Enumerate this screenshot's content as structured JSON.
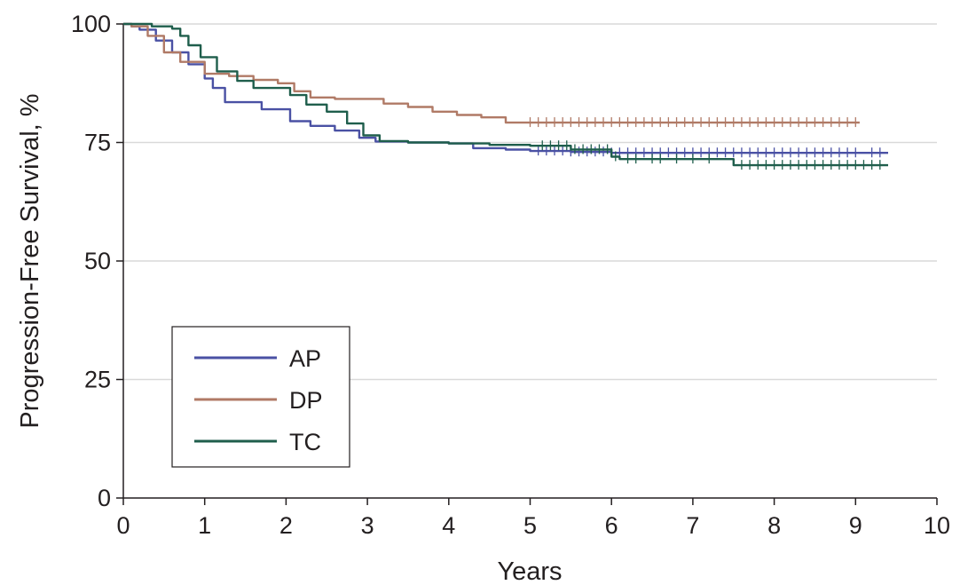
{
  "chart_data": {
    "type": "line",
    "xlabel": "Years",
    "ylabel": "Progression-Free Survival, %",
    "xlim": [
      0,
      10
    ],
    "ylim": [
      0,
      100
    ],
    "x_ticks": [
      "0",
      "1",
      "2",
      "3",
      "4",
      "5",
      "6",
      "7",
      "8",
      "9",
      "10"
    ],
    "y_ticks": [
      "0",
      "25",
      "50",
      "75",
      "100"
    ],
    "grid": "horizontal",
    "legend_position": "bottom-left",
    "series": [
      {
        "name": "AP",
        "color": "#4a51a4",
        "points": [
          [
            0,
            100
          ],
          [
            0.1,
            99.5
          ],
          [
            0.2,
            98.8
          ],
          [
            0.4,
            96.5
          ],
          [
            0.6,
            94
          ],
          [
            0.8,
            91.5
          ],
          [
            1.0,
            88.5
          ],
          [
            1.1,
            86.5
          ],
          [
            1.25,
            83.5
          ],
          [
            1.6,
            83.5
          ],
          [
            1.7,
            82
          ],
          [
            1.95,
            82
          ],
          [
            2.05,
            79.5
          ],
          [
            2.3,
            78.5
          ],
          [
            2.6,
            77.5
          ],
          [
            2.9,
            76
          ],
          [
            3.1,
            75.2
          ],
          [
            3.5,
            75
          ],
          [
            4.0,
            74.8
          ],
          [
            4.3,
            73.8
          ],
          [
            4.7,
            73.5
          ],
          [
            5.0,
            73.2
          ],
          [
            5.5,
            73.0
          ],
          [
            6.0,
            72.8
          ],
          [
            7.0,
            72.8
          ],
          [
            8.0,
            72.8
          ],
          [
            9.4,
            72.8
          ]
        ],
        "censor_x": [
          5.1,
          5.2,
          5.3,
          5.4,
          5.5,
          5.6,
          5.7,
          5.8,
          5.9,
          6.0,
          6.1,
          6.2,
          6.3,
          6.4,
          6.5,
          6.6,
          6.7,
          6.8,
          6.9,
          7.0,
          7.1,
          7.2,
          7.3,
          7.4,
          7.5,
          7.6,
          7.7,
          7.8,
          7.9,
          8.0,
          8.1,
          8.2,
          8.3,
          8.4,
          8.5,
          8.6,
          8.7,
          8.8,
          8.9,
          9.0,
          9.2,
          9.3
        ]
      },
      {
        "name": "DP",
        "color": "#b07a66",
        "points": [
          [
            0,
            100
          ],
          [
            0.1,
            99.5
          ],
          [
            0.3,
            97.5
          ],
          [
            0.5,
            94
          ],
          [
            0.7,
            92
          ],
          [
            1.0,
            89.5
          ],
          [
            1.3,
            89
          ],
          [
            1.6,
            88.2
          ],
          [
            1.9,
            87.5
          ],
          [
            2.1,
            85.8
          ],
          [
            2.3,
            84.5
          ],
          [
            2.6,
            84.2
          ],
          [
            3.0,
            84.2
          ],
          [
            3.2,
            83.2
          ],
          [
            3.5,
            82.5
          ],
          [
            3.8,
            81.5
          ],
          [
            4.1,
            80.8
          ],
          [
            4.4,
            80.3
          ],
          [
            4.7,
            79.2
          ],
          [
            5.0,
            79.2
          ],
          [
            6.0,
            79.2
          ],
          [
            7.0,
            79.2
          ],
          [
            8.0,
            79.2
          ],
          [
            9.05,
            79.2
          ]
        ],
        "censor_x": [
          5.0,
          5.1,
          5.2,
          5.3,
          5.4,
          5.5,
          5.6,
          5.7,
          5.8,
          5.9,
          6.0,
          6.1,
          6.2,
          6.3,
          6.4,
          6.5,
          6.6,
          6.7,
          6.8,
          6.9,
          7.0,
          7.1,
          7.2,
          7.3,
          7.4,
          7.5,
          7.6,
          7.7,
          7.8,
          7.9,
          8.0,
          8.1,
          8.2,
          8.3,
          8.4,
          8.5,
          8.6,
          8.7,
          8.8,
          8.9,
          9.0
        ]
      },
      {
        "name": "TC",
        "color": "#1f5e4c",
        "points": [
          [
            0,
            100
          ],
          [
            0.25,
            100
          ],
          [
            0.35,
            99.5
          ],
          [
            0.6,
            99
          ],
          [
            0.7,
            97.5
          ],
          [
            0.8,
            95.5
          ],
          [
            0.95,
            93
          ],
          [
            1.15,
            90
          ],
          [
            1.4,
            88
          ],
          [
            1.6,
            86.5
          ],
          [
            1.9,
            86.5
          ],
          [
            2.05,
            85
          ],
          [
            2.25,
            83
          ],
          [
            2.5,
            81.5
          ],
          [
            2.75,
            79
          ],
          [
            2.95,
            76.5
          ],
          [
            3.15,
            75.3
          ],
          [
            3.5,
            75.0
          ],
          [
            4.0,
            74.8
          ],
          [
            4.5,
            74.5
          ],
          [
            5.0,
            74.3
          ],
          [
            5.5,
            73.5
          ],
          [
            6.0,
            72.0
          ],
          [
            6.1,
            71.5
          ],
          [
            7.0,
            71.5
          ],
          [
            7.45,
            71.5
          ],
          [
            7.5,
            70.2
          ],
          [
            8.0,
            70.2
          ],
          [
            9.4,
            70.2
          ]
        ],
        "censor_x": [
          5.15,
          5.25,
          5.35,
          5.45,
          5.55,
          5.65,
          5.75,
          5.85,
          5.95,
          6.05,
          6.2,
          6.3,
          6.5,
          6.6,
          6.8,
          7.0,
          7.2,
          7.6,
          7.7,
          7.8,
          7.9,
          8.0,
          8.1,
          8.2,
          8.3,
          8.4,
          8.5,
          8.6,
          8.7,
          8.8,
          8.9,
          9.0,
          9.1,
          9.2,
          9.3
        ]
      }
    ]
  }
}
